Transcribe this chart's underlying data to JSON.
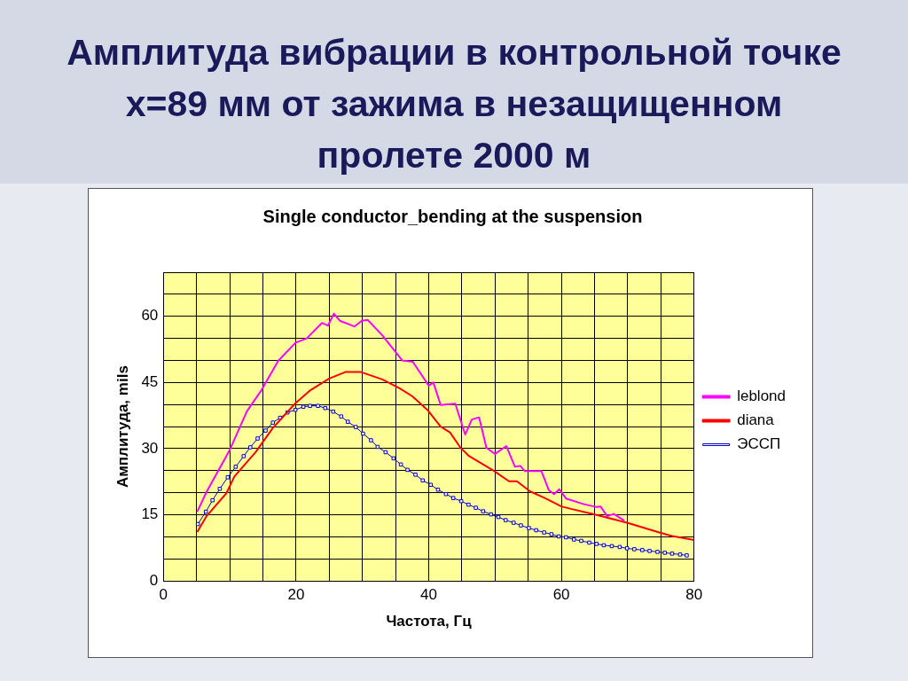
{
  "chart_data": {
    "type": "line",
    "title": "Амплитуда вибрации в контрольной точке x=89 мм от зажима в незащищенном пролете 2000 м",
    "subtitle": "Single conductor_bending at the suspension",
    "xlabel": "Частота, Гц",
    "ylabel": "Амплитуда, mils",
    "xlim": [
      0,
      80
    ],
    "ylim": [
      0,
      70
    ],
    "xticks": [
      0,
      {
        "value": 5,
        "label": null
      },
      {
        "value": 10,
        "label": null
      },
      {
        "value": 15,
        "label": null
      },
      20,
      {
        "value": 25,
        "label": null
      },
      {
        "value": 30,
        "label": null
      },
      {
        "value": 35,
        "label": null
      },
      40,
      {
        "value": 45,
        "label": null
      },
      {
        "value": 50,
        "label": null
      },
      {
        "value": 55,
        "label": null
      },
      60,
      {
        "value": 65,
        "label": null
      },
      {
        "value": 70,
        "label": null
      },
      {
        "value": 75,
        "label": null
      },
      80
    ],
    "yticks": [
      0,
      {
        "value": 5,
        "label": null
      },
      {
        "value": 10,
        "label": null
      },
      15,
      {
        "value": 20,
        "label": null
      },
      {
        "value": 25,
        "label": null
      },
      30,
      {
        "value": 35,
        "label": null
      },
      {
        "value": 40,
        "label": null
      },
      45,
      {
        "value": 50,
        "label": null
      },
      {
        "value": 55,
        "label": null
      },
      60,
      {
        "value": 65,
        "label": null
      },
      {
        "value": 70,
        "label": null
      }
    ],
    "grid": true,
    "legend": "right",
    "series": [
      {
        "name": "leblond",
        "color": "#ff00ff",
        "marker": "none",
        "x": [
          5.1,
          6.5,
          10.0,
          12.6,
          14.8,
          17.3,
          19.9,
          21.6,
          23.9,
          24.8,
          25.7,
          26.6,
          28.8,
          29.9,
          30.8,
          33.0,
          36.0,
          37.6,
          40.0,
          40.7,
          41.8,
          44.0,
          45.5,
          46.5,
          47.6,
          48.7,
          50.0,
          51.7,
          53.0,
          53.8,
          54.5,
          57.0,
          58.1,
          58.9,
          59.7,
          60.7,
          63.4,
          65.2,
          65.9,
          66.9,
          67.9,
          69.5
        ],
        "values": [
          15.7,
          20.2,
          29.7,
          38.5,
          43.3,
          49.9,
          54.0,
          55.0,
          58.5,
          57.9,
          60.6,
          59.0,
          57.7,
          59.0,
          59.2,
          55.7,
          50.0,
          49.7,
          44.3,
          45.0,
          39.9,
          40.2,
          33.2,
          36.6,
          37.1,
          30.2,
          28.8,
          30.6,
          25.9,
          26.1,
          24.9,
          24.9,
          20.6,
          19.7,
          20.8,
          18.7,
          17.4,
          16.8,
          16.9,
          14.7,
          15.2,
          13.7
        ]
      },
      {
        "name": "diana",
        "color": "#ff0000",
        "marker": "none",
        "x": [
          5.1,
          6.5,
          9.5,
          10.7,
          13.9,
          16.5,
          19.9,
          22.2,
          25.0,
          27.5,
          29.7,
          33.0,
          35.6,
          37.5,
          39.8,
          41.8,
          43.2,
          44.8,
          46.1,
          49.8,
          52.1,
          53.3,
          55.3,
          57.5,
          60.0,
          61.3,
          65.2,
          69.9,
          75.0,
          76.7,
          80.0
        ],
        "values": [
          11.1,
          14.7,
          19.9,
          23.7,
          29.2,
          34.7,
          40.3,
          43.3,
          45.9,
          47.4,
          47.4,
          45.7,
          43.7,
          41.9,
          38.8,
          35.0,
          33.7,
          30.2,
          28.3,
          25.0,
          22.6,
          22.6,
          20.3,
          18.8,
          16.9,
          16.4,
          15.0,
          13.2,
          10.9,
          10.2,
          9.3
        ]
      },
      {
        "name": "ЭССП",
        "color": "#0000cc",
        "marker": "square",
        "x": [
          5.2,
          6.4,
          7.4,
          8.5,
          9.7,
          10.9,
          12.1,
          13.1,
          14.2,
          15.4,
          16.5,
          17.6,
          18.7,
          19.9,
          21.1,
          22.1,
          23.3,
          24.4,
          25.6,
          26.8,
          27.8,
          29.0,
          30.1,
          31.3,
          32.3,
          33.5,
          34.7,
          35.8,
          36.8,
          38.0,
          39.1,
          40.3,
          41.4,
          42.6,
          43.7,
          44.9,
          46.0,
          47.1,
          48.2,
          49.4,
          50.5,
          51.6,
          52.8,
          53.9,
          55.1,
          56.2,
          57.4,
          58.5,
          59.6,
          60.7,
          61.9,
          63.0,
          64.2,
          65.3,
          66.4,
          67.6,
          68.8,
          69.9,
          71.0,
          72.2,
          73.3,
          74.5,
          75.6,
          76.7,
          77.9,
          78.9
        ],
        "values": [
          12.9,
          15.7,
          18.3,
          20.9,
          23.5,
          25.9,
          28.3,
          30.3,
          32.3,
          34.1,
          35.9,
          37.0,
          38.2,
          38.8,
          39.5,
          39.7,
          39.7,
          39.2,
          38.4,
          37.3,
          36.1,
          34.9,
          33.4,
          31.9,
          30.4,
          29.2,
          27.8,
          26.4,
          25.2,
          24.1,
          22.8,
          21.8,
          20.7,
          19.7,
          18.8,
          18.1,
          17.3,
          16.6,
          15.8,
          15.1,
          14.5,
          13.8,
          13.2,
          12.6,
          12.0,
          11.5,
          11.0,
          10.6,
          10.1,
          9.9,
          9.4,
          9.1,
          8.7,
          8.4,
          8.1,
          7.9,
          7.7,
          7.4,
          7.2,
          7.0,
          6.8,
          6.6,
          6.4,
          6.2,
          6.0,
          5.8
        ]
      }
    ]
  }
}
